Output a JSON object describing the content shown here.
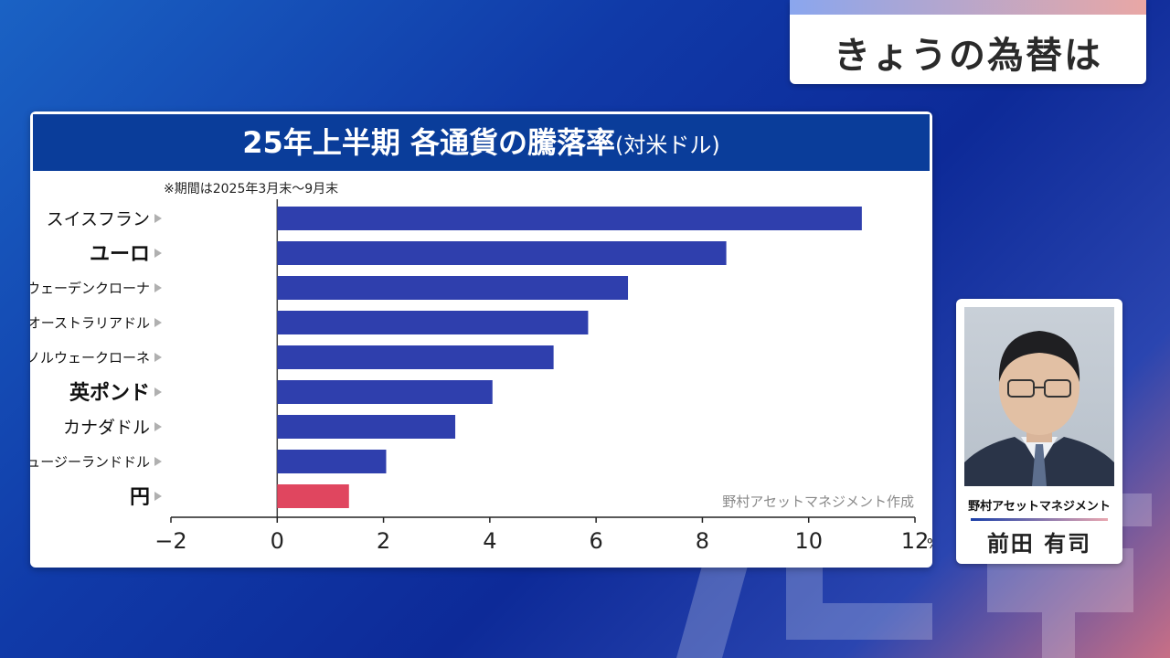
{
  "banner": {
    "title": "きょうの為替は"
  },
  "panel": {
    "title": "25年上半期 各通貨の騰落率",
    "title_suffix": "(対米ドル)",
    "note": "※期間は2025年3月末〜9月末",
    "source": "野村アセットマネジメント作成"
  },
  "chart_data": {
    "type": "bar",
    "orientation": "horizontal",
    "categories": [
      "スイスフラン",
      "ユーロ",
      "スウェーデンクローナ",
      "オーストラリアドル",
      "ノルウェークローネ",
      "英ポンド",
      "カナダドル",
      "ニュージーランドドル",
      "円"
    ],
    "values": [
      11.0,
      8.45,
      6.6,
      5.85,
      5.2,
      4.05,
      3.35,
      2.05,
      1.35
    ],
    "colors": {
      "default": "#2f3fad",
      "highlight": "#e0465f"
    },
    "highlight_category": "円",
    "xlim": [
      -2,
      12
    ],
    "ticks": [
      {
        "value": -2,
        "label": "−2"
      },
      {
        "value": 0,
        "label": "0"
      },
      {
        "value": 2,
        "label": "2"
      },
      {
        "value": 4,
        "label": "4"
      },
      {
        "value": 6,
        "label": "6"
      },
      {
        "value": 8,
        "label": "8"
      },
      {
        "value": 10,
        "label": "10"
      },
      {
        "value": 12,
        "label": "12"
      }
    ],
    "unit": "%"
  },
  "person": {
    "org": "野村アセットマネジメント",
    "name": "前田 有司"
  }
}
